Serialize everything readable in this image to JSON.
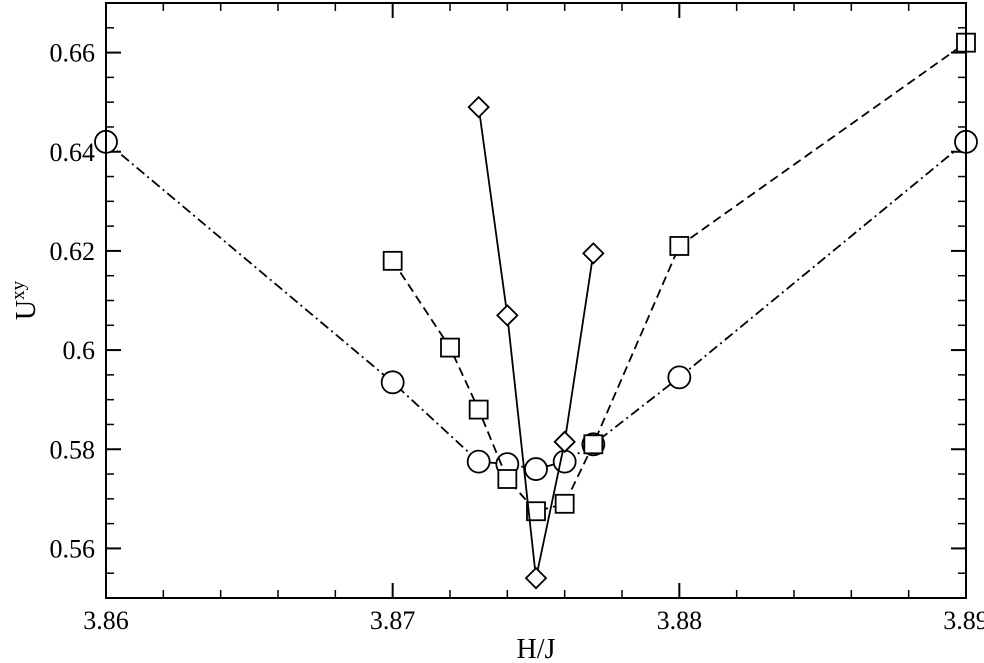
{
  "chart_data": {
    "type": "line",
    "title": "",
    "xlabel": "H/J",
    "ylabel_main": "U",
    "ylabel_sup": "xy",
    "xlim": [
      3.86,
      3.89
    ],
    "ylim": [
      0.55,
      0.67
    ],
    "x_ticks": [
      3.86,
      3.87,
      3.88,
      3.89
    ],
    "x_tick_labels": [
      "3.86",
      "3.87",
      "3.88",
      "3.89"
    ],
    "y_ticks": [
      0.56,
      0.58,
      0.6,
      0.62,
      0.64,
      0.66
    ],
    "y_tick_labels": [
      "0.56",
      "0.58",
      "0.6",
      "0.62",
      "0.64",
      "0.66"
    ],
    "x_minor_step": 0.002,
    "y_minor_step": 0.005,
    "grid": false,
    "legend": "none",
    "series": [
      {
        "marker": "circle",
        "line_style": "dash-dot",
        "points": [
          [
            3.86,
            0.642
          ],
          [
            3.87,
            0.5935
          ],
          [
            3.873,
            0.5775
          ],
          [
            3.874,
            0.577
          ],
          [
            3.875,
            0.576
          ],
          [
            3.876,
            0.5775
          ],
          [
            3.877,
            0.581
          ],
          [
            3.88,
            0.5945
          ],
          [
            3.89,
            0.642
          ]
        ]
      },
      {
        "marker": "square",
        "line_style": "dashed",
        "points": [
          [
            3.87,
            0.618
          ],
          [
            3.872,
            0.6005
          ],
          [
            3.873,
            0.588
          ],
          [
            3.874,
            0.574
          ],
          [
            3.875,
            0.5675
          ],
          [
            3.876,
            0.569
          ],
          [
            3.877,
            0.581
          ],
          [
            3.88,
            0.621
          ],
          [
            3.89,
            0.662
          ]
        ]
      },
      {
        "marker": "diamond",
        "line_style": "solid",
        "points": [
          [
            3.873,
            0.649
          ],
          [
            3.874,
            0.607
          ],
          [
            3.875,
            0.554
          ],
          [
            3.876,
            0.5815
          ],
          [
            3.877,
            0.6195
          ]
        ]
      }
    ]
  }
}
